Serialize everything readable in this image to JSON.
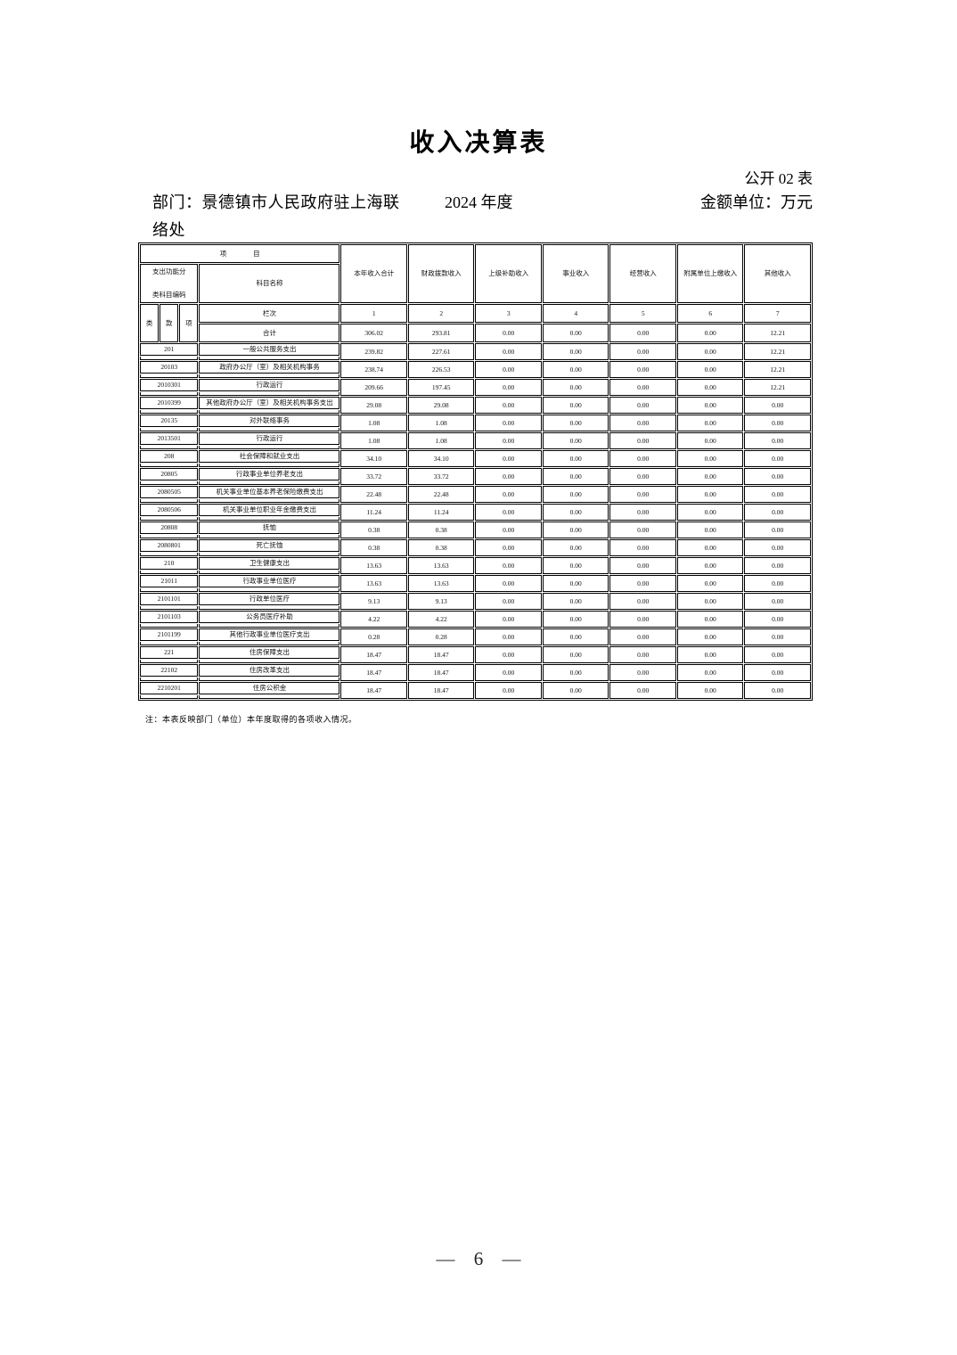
{
  "page": {
    "title": "收入决算表",
    "doc_label": "公开 02 表",
    "department": "部门：景德镇市人民政府驻上海联络处",
    "year": "2024 年度",
    "unit": "金额单位：万元",
    "note": "注：本表反映部门（单位）本年度取得的各项收入情况。",
    "page_number": "— 6 —"
  },
  "table": {
    "header": {
      "project_label": "项 目",
      "code_label_line1": "支出功能分",
      "code_label_line2": "类科目编码",
      "subject_label": "科目名称",
      "class_label": "类",
      "kuan_label": "款",
      "xiang_label": "项",
      "lanci_label": "栏次",
      "col_numbers": [
        "1",
        "2",
        "3",
        "4",
        "5",
        "6",
        "7"
      ],
      "columns": [
        "本年收入合计",
        "财政拨款收入",
        "上级补助收入",
        "事业收入",
        "经营收入",
        "附属单位上缴收入",
        "其他收入"
      ],
      "total_label": "合计"
    },
    "total_values": [
      "306.02",
      "293.81",
      "0.00",
      "0.00",
      "0.00",
      "0.00",
      "12.21"
    ],
    "rows": [
      {
        "code": "201",
        "name": "一般公共服务支出",
        "values": [
          "239.82",
          "227.61",
          "0.00",
          "0.00",
          "0.00",
          "0.00",
          "12.21"
        ]
      },
      {
        "code": "20103",
        "name": "政府办公厅（室）及相关机构事务",
        "values": [
          "238.74",
          "226.53",
          "0.00",
          "0.00",
          "0.00",
          "0.00",
          "12.21"
        ]
      },
      {
        "code": "2010301",
        "name": "行政运行",
        "values": [
          "209.66",
          "197.45",
          "0.00",
          "0.00",
          "0.00",
          "0.00",
          "12.21"
        ]
      },
      {
        "code": "2010399",
        "name": "其他政府办公厅（室）及相关机构事务支出",
        "values": [
          "29.08",
          "29.08",
          "0.00",
          "0.00",
          "0.00",
          "0.00",
          "0.00"
        ]
      },
      {
        "code": "20135",
        "name": "对外联络事务",
        "values": [
          "1.08",
          "1.08",
          "0.00",
          "0.00",
          "0.00",
          "0.00",
          "0.00"
        ]
      },
      {
        "code": "2013501",
        "name": "行政运行",
        "values": [
          "1.08",
          "1.08",
          "0.00",
          "0.00",
          "0.00",
          "0.00",
          "0.00"
        ]
      },
      {
        "code": "208",
        "name": "社会保障和就业支出",
        "values": [
          "34.10",
          "34.10",
          "0.00",
          "0.00",
          "0.00",
          "0.00",
          "0.00"
        ]
      },
      {
        "code": "20805",
        "name": "行政事业单位养老支出",
        "values": [
          "33.72",
          "33.72",
          "0.00",
          "0.00",
          "0.00",
          "0.00",
          "0.00"
        ]
      },
      {
        "code": "2080505",
        "name": "机关事业单位基本养老保险缴费支出",
        "values": [
          "22.48",
          "22.48",
          "0.00",
          "0.00",
          "0.00",
          "0.00",
          "0.00"
        ]
      },
      {
        "code": "2080506",
        "name": "机关事业单位职业年金缴费支出",
        "values": [
          "11.24",
          "11.24",
          "0.00",
          "0.00",
          "0.00",
          "0.00",
          "0.00"
        ]
      },
      {
        "code": "20808",
        "name": "抚恤",
        "values": [
          "0.38",
          "0.38",
          "0.00",
          "0.00",
          "0.00",
          "0.00",
          "0.00"
        ]
      },
      {
        "code": "2080801",
        "name": "死亡抚恤",
        "values": [
          "0.38",
          "0.38",
          "0.00",
          "0.00",
          "0.00",
          "0.00",
          "0.00"
        ]
      },
      {
        "code": "210",
        "name": "卫生健康支出",
        "values": [
          "13.63",
          "13.63",
          "0.00",
          "0.00",
          "0.00",
          "0.00",
          "0.00"
        ]
      },
      {
        "code": "21011",
        "name": "行政事业单位医疗",
        "values": [
          "13.63",
          "13.63",
          "0.00",
          "0.00",
          "0.00",
          "0.00",
          "0.00"
        ]
      },
      {
        "code": "2101101",
        "name": "行政单位医疗",
        "values": [
          "9.13",
          "9.13",
          "0.00",
          "0.00",
          "0.00",
          "0.00",
          "0.00"
        ]
      },
      {
        "code": "2101103",
        "name": "公务员医疗补助",
        "values": [
          "4.22",
          "4.22",
          "0.00",
          "0.00",
          "0.00",
          "0.00",
          "0.00"
        ]
      },
      {
        "code": "2101199",
        "name": "其他行政事业单位医疗支出",
        "values": [
          "0.28",
          "0.28",
          "0.00",
          "0.00",
          "0.00",
          "0.00",
          "0.00"
        ]
      },
      {
        "code": "221",
        "name": "住房保障支出",
        "values": [
          "18.47",
          "18.47",
          "0.00",
          "0.00",
          "0.00",
          "0.00",
          "0.00"
        ]
      },
      {
        "code": "22102",
        "name": "住房改革支出",
        "values": [
          "18.47",
          "18.47",
          "0.00",
          "0.00",
          "0.00",
          "0.00",
          "0.00"
        ]
      },
      {
        "code": "2210201",
        "name": "住房公积金",
        "values": [
          "18.47",
          "18.47",
          "0.00",
          "0.00",
          "0.00",
          "0.00",
          "0.00"
        ]
      }
    ]
  }
}
